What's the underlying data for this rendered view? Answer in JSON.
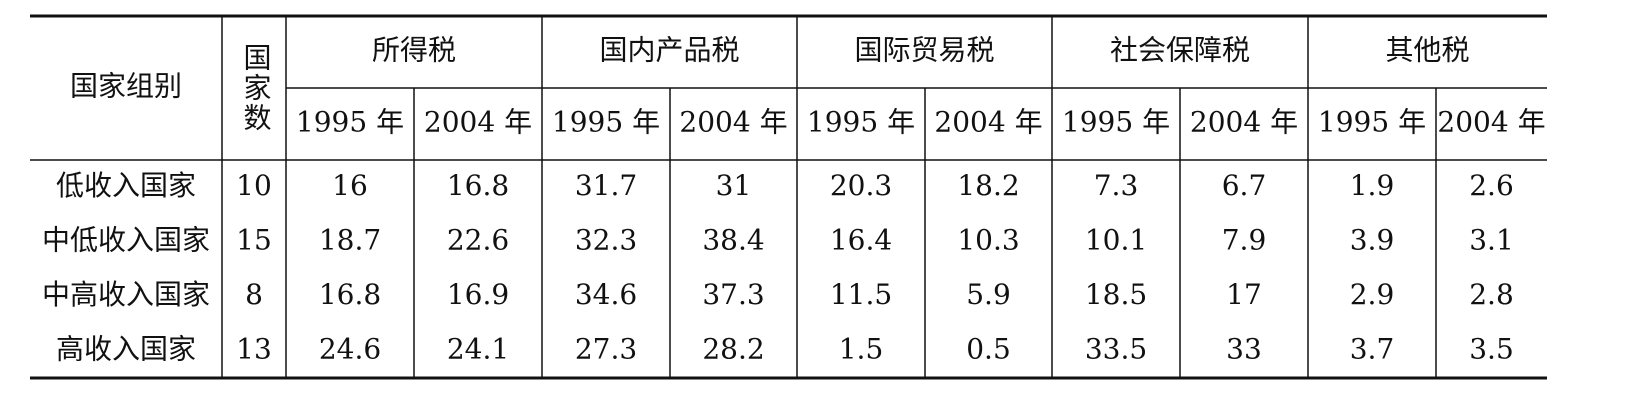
{
  "table": {
    "header": {
      "group_label": "国家组别",
      "count_label": "国家数",
      "tax_groups": [
        {
          "name": "所得税",
          "years": [
            "1995 年",
            "2004 年"
          ]
        },
        {
          "name": "国内产品税",
          "years": [
            "1995 年",
            "2004 年"
          ]
        },
        {
          "name": "国际贸易税",
          "years": [
            "1995 年",
            "2004 年"
          ]
        },
        {
          "name": "社会保障税",
          "years": [
            "1995 年",
            "2004 年"
          ]
        },
        {
          "name": "其他税",
          "years": [
            "1995 年",
            "2004 年"
          ]
        }
      ]
    },
    "rows": [
      [
        "低收入国家",
        "10",
        "16",
        "16.8",
        "31.7",
        "31",
        "20.3",
        "18.2",
        "7.3",
        "6.7",
        "1.9",
        "2.6"
      ],
      [
        "中低收入国家",
        "15",
        "18.7",
        "22.6",
        "32.3",
        "38.4",
        "16.4",
        "10.3",
        "10.1",
        "7.9",
        "3.9",
        "3.1"
      ],
      [
        "中高收入国家",
        "8",
        "16.8",
        "16.9",
        "34.6",
        "37.3",
        "11.5",
        "5.9",
        "18.5",
        "17",
        "2.9",
        "2.8"
      ],
      [
        "高收入国家",
        "13",
        "24.6",
        "24.1",
        "27.3",
        "28.2",
        "1.5",
        "0.5",
        "33.5",
        "33",
        "3.7",
        "3.5"
      ]
    ]
  }
}
